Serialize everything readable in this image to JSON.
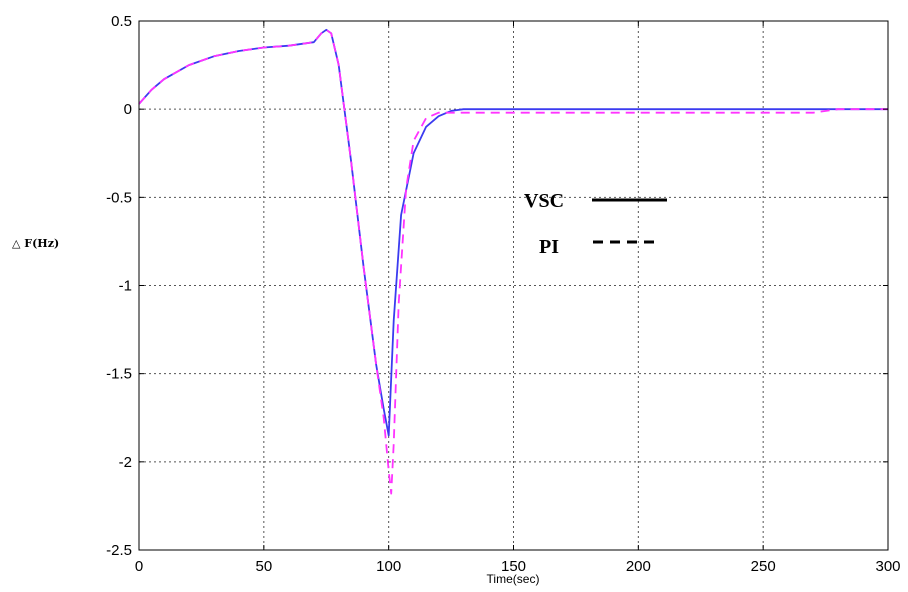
{
  "chart_data": {
    "type": "line",
    "title": "",
    "xlabel": "Time(sec)",
    "ylabel": "△ F(Hz)",
    "xlim": [
      0,
      300
    ],
    "ylim": [
      -2.5,
      0.5
    ],
    "xticks": [
      0,
      50,
      100,
      150,
      200,
      250,
      300
    ],
    "yticks": [
      0.5,
      0,
      -0.5,
      -1,
      -1.5,
      -2,
      -2.5
    ],
    "xtick_labels": [
      "0",
      "50",
      "100",
      "150",
      "200",
      "250",
      "300"
    ],
    "ytick_labels": [
      "0.5",
      "0",
      "-0.5",
      "-1",
      "-1.5",
      "-2",
      "-2.5"
    ],
    "grid": true,
    "legend_position": "right",
    "series": [
      {
        "name": "VSC",
        "style": "solid",
        "color": "#3b3bf0",
        "legend_style": "solid",
        "x": [
          0,
          5,
          10,
          20,
          30,
          40,
          50,
          60,
          70,
          73,
          75,
          77,
          80,
          85,
          90,
          95,
          98,
          100,
          102,
          105,
          110,
          115,
          120,
          125,
          130,
          140,
          150,
          300
        ],
        "y": [
          0.03,
          0.11,
          0.17,
          0.25,
          0.3,
          0.33,
          0.35,
          0.36,
          0.38,
          0.43,
          0.45,
          0.43,
          0.25,
          -0.3,
          -0.9,
          -1.45,
          -1.7,
          -1.85,
          -1.2,
          -0.6,
          -0.25,
          -0.1,
          -0.04,
          -0.01,
          0,
          0,
          0,
          0
        ]
      },
      {
        "name": "PI",
        "style": "dashed",
        "color": "#ff33ff",
        "legend_style": "dashed",
        "x": [
          0,
          5,
          10,
          20,
          30,
          40,
          50,
          60,
          70,
          73,
          75,
          77,
          80,
          85,
          90,
          95,
          98,
          100,
          101,
          102,
          104,
          107,
          110,
          115,
          120,
          150,
          200,
          270,
          280,
          300
        ],
        "y": [
          0.03,
          0.11,
          0.17,
          0.25,
          0.3,
          0.33,
          0.35,
          0.36,
          0.38,
          0.43,
          0.45,
          0.43,
          0.25,
          -0.3,
          -0.9,
          -1.45,
          -1.75,
          -2.05,
          -2.18,
          -1.9,
          -1.1,
          -0.45,
          -0.18,
          -0.05,
          -0.02,
          -0.02,
          -0.02,
          -0.02,
          0,
          0
        ]
      }
    ]
  },
  "colors": {
    "frame": "#000000",
    "grid": "#555555",
    "background": "#ffffff"
  }
}
